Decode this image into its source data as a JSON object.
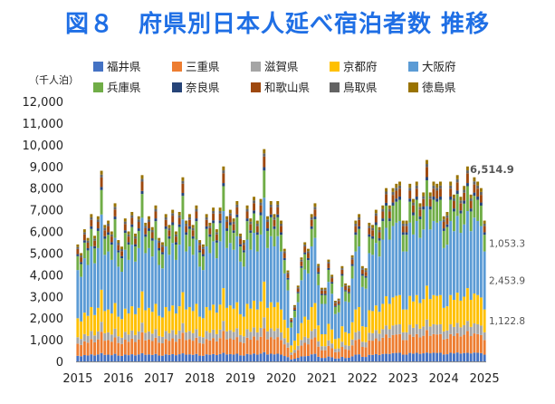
{
  "title": "図８　府県別日本人延べ宿泊者数 推移",
  "chart_data": {
    "type": "bar",
    "stacked": true,
    "title": "図８　府県別日本人延べ宿泊者数 推移",
    "unit_label": "（千人泊）",
    "ylim": [
      0,
      12000
    ],
    "y_ticks": [
      0,
      1000,
      2000,
      3000,
      4000,
      5000,
      6000,
      7000,
      8000,
      9000,
      10000,
      11000,
      12000
    ],
    "y_tick_labels": [
      "0",
      "1,000",
      "2,000",
      "3,000",
      "4,000",
      "5,000",
      "6,000",
      "7,000",
      "8,000",
      "9,000",
      "10,000",
      "11,000",
      "12,000"
    ],
    "x_tick_labels": [
      "2015",
      "2016",
      "2017",
      "2018",
      "2019",
      "2020",
      "2021",
      "2022",
      "2023",
      "2024",
      "2025"
    ],
    "grid": false,
    "legend_position": "top",
    "periods_note": "monthly, Jan 2015 - Jan 2025",
    "series": [
      {
        "name": "福井県",
        "color": "#4472c4",
        "share": 0.048,
        "peak_share": 0.044
      },
      {
        "name": "三重県",
        "color": "#ed7d31",
        "share": 0.104,
        "peak_share": 0.112
      },
      {
        "name": "滋賀県",
        "color": "#a5a5a5",
        "share": 0.055,
        "peak_share": 0.052
      },
      {
        "name": "京都府",
        "color": "#ffc000",
        "share": 0.162,
        "peak_share": 0.168
      },
      {
        "name": "大阪府",
        "color": "#5b9bd5",
        "share": 0.412,
        "peak_share": 0.395
      },
      {
        "name": "兵庫県",
        "color": "#70ad47",
        "share": 0.118,
        "peak_share": 0.128
      },
      {
        "name": "奈良県",
        "color": "#264478",
        "share": 0.018,
        "peak_share": 0.016
      },
      {
        "name": "和歌山県",
        "color": "#9e480e",
        "share": 0.044,
        "peak_share": 0.05
      },
      {
        "name": "鳥取県",
        "color": "#636363",
        "share": 0.017,
        "peak_share": 0.015
      },
      {
        "name": "徳島県",
        "color": "#997300",
        "share": 0.022,
        "peak_share": 0.02
      }
    ],
    "monthly_totals": [
      5400,
      5000,
      6100,
      5700,
      6800,
      5800,
      6700,
      8800,
      6300,
      6500,
      6000,
      7300,
      5600,
      5300,
      6600,
      6000,
      6900,
      5900,
      6700,
      8600,
      6400,
      6700,
      6200,
      7200,
      5700,
      5500,
      6800,
      6300,
      7000,
      6000,
      6900,
      8500,
      6500,
      6800,
      6300,
      7200,
      5600,
      5400,
      6800,
      6400,
      7100,
      6100,
      7100,
      9000,
      6700,
      7000,
      6600,
      7400,
      5900,
      5600,
      7200,
      6600,
      7600,
      6500,
      7500,
      9800,
      6700,
      7400,
      6800,
      7400,
      6500,
      5200,
      4200,
      2000,
      2600,
      3500,
      4800,
      5500,
      5200,
      6800,
      7300,
      4500,
      3400,
      3400,
      4700,
      4000,
      2800,
      2900,
      4400,
      3600,
      3500,
      4900,
      6500,
      6800,
      4400,
      4300,
      6400,
      6300,
      7000,
      6200,
      7200,
      8000,
      7200,
      8000,
      8200,
      8300,
      6500,
      6500,
      8200,
      7500,
      8300,
      7300,
      7800,
      9300,
      7800,
      8300,
      8200,
      8300,
      6700,
      6900,
      8300,
      7700,
      8600,
      7600,
      8100,
      9000,
      7700,
      8500,
      8300,
      8000,
      6500
    ],
    "annotations": [
      {
        "text": "6,514.9",
        "series": "total"
      },
      {
        "text": "1,053.3",
        "series": "兵庫県"
      },
      {
        "text": "2,453.9",
        "series": "大阪府"
      },
      {
        "text": "1,122.8",
        "series": "京都府"
      }
    ]
  }
}
